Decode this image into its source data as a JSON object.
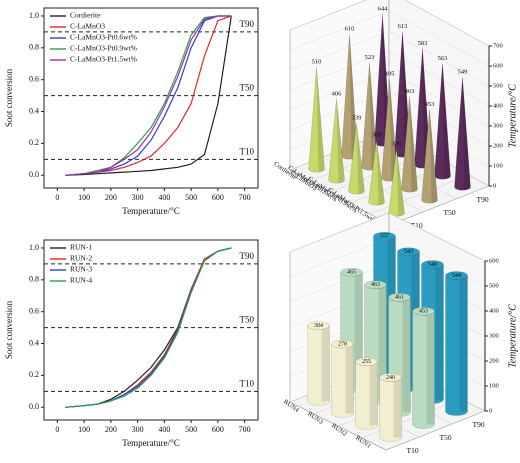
{
  "chart_data": [
    {
      "type": "line",
      "xlabel": "Temperature/°C",
      "ylabel": "Soot conversion",
      "x": [
        30,
        100,
        150,
        200,
        250,
        300,
        350,
        400,
        450,
        500,
        550,
        600,
        650
      ],
      "series": [
        {
          "name": "Cordierite",
          "color": "#222222",
          "values": [
            0,
            0.005,
            0.01,
            0.015,
            0.02,
            0.025,
            0.03,
            0.04,
            0.05,
            0.07,
            0.13,
            0.45,
            1.0
          ]
        },
        {
          "name": "C-LaMnO3",
          "color": "#e8252a",
          "values": [
            0,
            0.01,
            0.02,
            0.03,
            0.05,
            0.08,
            0.12,
            0.2,
            0.3,
            0.45,
            0.75,
            0.97,
            1.0
          ]
        },
        {
          "name": "C-LaMnO3-Pt0.6wt%",
          "color": "#2b3fd6",
          "values": [
            0,
            0.01,
            0.02,
            0.04,
            0.07,
            0.12,
            0.22,
            0.37,
            0.55,
            0.8,
            0.97,
            1.0,
            1.0
          ]
        },
        {
          "name": "C-LaMnO3-Pt0.9wt%",
          "color": "#2e9e4a",
          "values": [
            0,
            0.01,
            0.03,
            0.05,
            0.11,
            0.2,
            0.3,
            0.45,
            0.65,
            0.88,
            0.99,
            1.0,
            1.0
          ]
        },
        {
          "name": "C-LaMnO3-Pt1.5wt%",
          "color": "#9b2fb0",
          "values": [
            0,
            0.01,
            0.02,
            0.05,
            0.1,
            0.16,
            0.27,
            0.43,
            0.62,
            0.85,
            0.98,
            1.0,
            1.0
          ]
        }
      ],
      "reference_lines": [
        {
          "value": 0.9,
          "label": "T90"
        },
        {
          "value": 0.5,
          "label": "T50"
        },
        {
          "value": 0.1,
          "label": "T10"
        }
      ],
      "xlim": [
        -50,
        750
      ],
      "xticks": [
        0,
        100,
        200,
        300,
        400,
        500,
        600,
        700
      ],
      "ylim": [
        -0.08,
        1.05
      ],
      "yticks": [
        {
          "value": 0,
          "label": "0.0"
        },
        0.2,
        0.4,
        0.6,
        0.8,
        {
          "value": 1,
          "label": "1.0"
        }
      ],
      "legend": "upper left"
    },
    {
      "type": "bar3d",
      "shape": "cone",
      "ylabel": "Temperature/°C",
      "categories": [
        "Cordierite",
        "C-LaMnO3",
        "C-LaMnO3-Pt0.6wt%",
        "C-LaMnO3-Pt0.9wt%",
        "C-LaMnO3-Pt1.5wt%"
      ],
      "series": [
        {
          "name": "T10",
          "color": "#c6d96a",
          "values": [
            510,
            406,
            339,
            309,
            320
          ]
        },
        {
          "name": "T50",
          "color": "#b3a172",
          "values": [
            610,
            523,
            495,
            463,
            453
          ]
        },
        {
          "name": "T90",
          "color": "#5b2c5c",
          "values": [
            644,
            613,
            583,
            563,
            549
          ]
        }
      ],
      "ylim": [
        0,
        700
      ],
      "yticks": [
        0,
        100,
        200,
        300,
        400,
        500,
        600,
        700
      ]
    },
    {
      "type": "line",
      "xlabel": "Temperature/°C",
      "ylabel": "Soot conversion",
      "x": [
        30,
        100,
        150,
        200,
        250,
        300,
        350,
        400,
        450,
        500,
        550,
        600,
        650
      ],
      "series": [
        {
          "name": "RUN-1",
          "color": "#222222",
          "values": [
            0,
            0.01,
            0.02,
            0.05,
            0.1,
            0.17,
            0.25,
            0.36,
            0.5,
            0.74,
            0.93,
            0.98,
            1.0
          ]
        },
        {
          "name": "RUN-2",
          "color": "#e8252a",
          "values": [
            0,
            0.01,
            0.02,
            0.04,
            0.08,
            0.14,
            0.22,
            0.33,
            0.49,
            0.74,
            0.93,
            0.98,
            1.0
          ]
        },
        {
          "name": "RUN-3",
          "color": "#2b3fd6",
          "values": [
            0,
            0.01,
            0.02,
            0.04,
            0.08,
            0.13,
            0.21,
            0.32,
            0.48,
            0.73,
            0.92,
            0.98,
            1.0
          ]
        },
        {
          "name": "RUN-4",
          "color": "#2e9e4a",
          "values": [
            0,
            0.01,
            0.02,
            0.04,
            0.07,
            0.12,
            0.2,
            0.31,
            0.47,
            0.72,
            0.92,
            0.98,
            1.0
          ]
        }
      ],
      "reference_lines": [
        {
          "value": 0.9,
          "label": "T90"
        },
        {
          "value": 0.5,
          "label": "T50"
        },
        {
          "value": 0.1,
          "label": "T10"
        }
      ],
      "xlim": [
        -50,
        750
      ],
      "xticks": [
        0,
        100,
        200,
        300,
        400,
        500,
        600,
        700
      ],
      "ylim": [
        -0.08,
        1.05
      ],
      "yticks": [
        {
          "value": 0,
          "label": "0.0"
        },
        0.2,
        0.4,
        0.6,
        0.8,
        {
          "value": 1,
          "label": "1.0"
        }
      ],
      "legend": "upper left"
    },
    {
      "type": "bar3d",
      "shape": "cylinder",
      "ylabel": "Temperature/°C",
      "categories": [
        "RUN4",
        "RUN3",
        "RUN2",
        "RUN1"
      ],
      "series": [
        {
          "name": "T10",
          "color": "#f1efcf",
          "values": [
            304,
            278,
            255,
            240
          ]
        },
        {
          "name": "T50",
          "color": "#b9dcc1",
          "values": [
            465,
            463,
            461,
            453
          ]
        },
        {
          "name": "T90",
          "color": "#2a9cc2",
          "values": [
            557,
            543,
            540,
            544
          ]
        }
      ],
      "ylim": [
        0,
        600
      ],
      "yticks": [
        0,
        100,
        200,
        300,
        400,
        500,
        600
      ]
    }
  ]
}
